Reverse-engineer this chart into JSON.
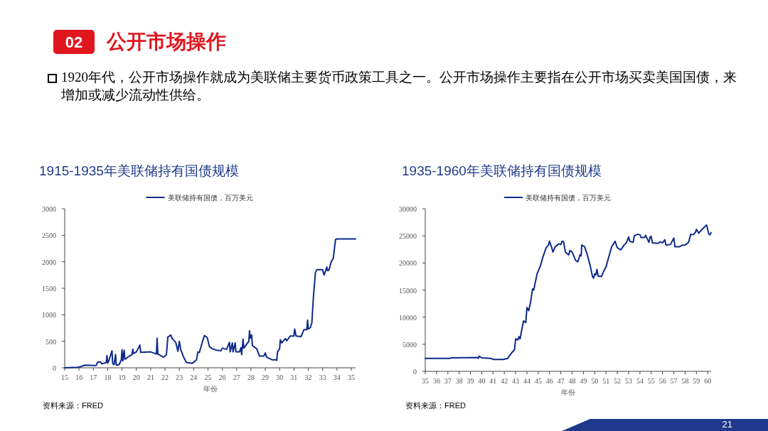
{
  "chart_data": [
    {
      "type": "other",
      "title": "公开市场操作",
      "annotations": [
        "02",
        "1920年代，公开市场操作就成为美联储主要货币政策工具之一。公开市场操作主要指在公开市场买卖美国国债，来增加或减少流动性供给。",
        "21"
      ]
    },
    {
      "type": "line",
      "title": "1915-1935年美联储持有国债规模",
      "xlabel": "年份",
      "legend": "top",
      "grid": false,
      "annotations": [
        "资料来源：FRED"
      ],
      "xlim": [
        15,
        35.3
      ],
      "xticks": [
        15,
        16,
        17,
        18,
        19,
        20,
        21,
        22,
        23,
        24,
        25,
        26,
        27,
        28,
        29,
        30,
        31,
        32,
        33,
        34,
        35
      ],
      "ylim": [
        0,
        3000
      ],
      "yticks": [
        0,
        500,
        1000,
        1500,
        2000,
        2500,
        3000
      ],
      "series": [
        {
          "name": "美联储持有国债，百万美元",
          "color": "#0d2a8a",
          "x": [
            15,
            15.9,
            16.1,
            16.4,
            17.0,
            17.2,
            17.3,
            17.5,
            17.6,
            17.9,
            17.95,
            18.0,
            18.1,
            18.3,
            18.35,
            18.45,
            18.55,
            18.6,
            18.8,
            18.95,
            19.0,
            19.05,
            19.15,
            19.2,
            19.5,
            19.7,
            19.75,
            19.8,
            20.0,
            20.25,
            20.3,
            21.0,
            21.4,
            21.45,
            21.5,
            21.9,
            22.0,
            22.1,
            22.2,
            22.4,
            22.5,
            22.75,
            22.9,
            23.0,
            23.1,
            23.3,
            23.5,
            23.9,
            24.2,
            24.3,
            24.4,
            24.6,
            24.75,
            24.95,
            25.1,
            25.3,
            25.6,
            25.9,
            26.0,
            26.3,
            26.5,
            26.55,
            26.7,
            26.75,
            26.9,
            26.95,
            27.2,
            27.3,
            27.35,
            27.45,
            27.5,
            27.85,
            27.9,
            27.95,
            28.05,
            28.1,
            28.4,
            28.6,
            28.9,
            29.0,
            29.1,
            29.5,
            29.75,
            29.8,
            29.85,
            30.0,
            30.05,
            30.15,
            30.4,
            30.5,
            30.75,
            31.0,
            31.05,
            31.15,
            31.5,
            31.7,
            31.9,
            31.95,
            32.0,
            32.15,
            32.25,
            32.35,
            32.5,
            32.6,
            33.0,
            33.1,
            33.3,
            33.35,
            33.45,
            33.6,
            33.75,
            33.9,
            34.0,
            35.3
          ],
          "values": [
            0,
            10,
            20,
            50,
            45,
            45,
            110,
            110,
            75,
            100,
            230,
            90,
            150,
            320,
            80,
            60,
            250,
            50,
            60,
            150,
            340,
            130,
            330,
            160,
            220,
            250,
            350,
            270,
            300,
            430,
            290,
            300,
            260,
            560,
            260,
            200,
            220,
            250,
            580,
            620,
            550,
            480,
            310,
            500,
            340,
            200,
            100,
            85,
            150,
            300,
            290,
            480,
            610,
            570,
            400,
            360,
            330,
            320,
            370,
            350,
            480,
            300,
            470,
            300,
            470,
            300,
            300,
            380,
            250,
            540,
            370,
            500,
            700,
            560,
            620,
            420,
            360,
            220,
            220,
            280,
            200,
            150,
            150,
            140,
            300,
            360,
            530,
            470,
            550,
            510,
            600,
            600,
            730,
            600,
            590,
            720,
            720,
            900,
            730,
            760,
            850,
            1300,
            1800,
            1850,
            1850,
            1750,
            1900,
            1830,
            1850,
            2000,
            2070,
            2420,
            2430,
            2430
          ]
        }
      ]
    },
    {
      "type": "line",
      "title": "1935-1960年美联储持有国债规模",
      "xlabel": "年份",
      "legend": "top",
      "grid": false,
      "annotations": [
        "资料来源：FRED"
      ],
      "xlim": [
        35,
        60.3
      ],
      "xticks": [
        35,
        36,
        37,
        38,
        39,
        40,
        41,
        42,
        43,
        44,
        45,
        46,
        47,
        48,
        49,
        50,
        51,
        52,
        53,
        54,
        55,
        56,
        57,
        58,
        59,
        60
      ],
      "ylim": [
        0,
        30000
      ],
      "yticks": [
        0,
        5000,
        10000,
        15000,
        20000,
        25000,
        30000
      ],
      "series": [
        {
          "name": "美联储持有国债，百万美元",
          "color": "#0d2a8a",
          "x": [
            35,
            37.2,
            37.3,
            39.6,
            39.7,
            39.75,
            40.0,
            40.8,
            41.0,
            41.9,
            42.3,
            42.6,
            42.9,
            43.0,
            43.2,
            43.3,
            43.4,
            43.5,
            43.7,
            43.9,
            44.0,
            44.15,
            44.3,
            44.5,
            44.6,
            44.9,
            45.2,
            45.4,
            45.7,
            45.9,
            46.0,
            46.2,
            46.3,
            46.5,
            46.8,
            47.0,
            47.1,
            47.25,
            47.4,
            47.7,
            47.8,
            48.0,
            48.2,
            48.3,
            48.5,
            48.7,
            48.8,
            48.85,
            49.1,
            49.3,
            49.6,
            49.8,
            49.9,
            50.0,
            50.1,
            50.2,
            50.3,
            50.6,
            50.8,
            51.0,
            51.2,
            51.5,
            51.8,
            52.0,
            52.3,
            52.6,
            52.8,
            53.0,
            53.1,
            53.4,
            53.5,
            53.8,
            54.0,
            54.1,
            54.4,
            54.5,
            54.8,
            54.9,
            55.0,
            55.1,
            55.6,
            55.8,
            56.0,
            56.2,
            56.3,
            56.7,
            57.0,
            57.1,
            57.5,
            57.8,
            58.0,
            58.3,
            58.5,
            58.7,
            58.9,
            59.0,
            59.2,
            59.5,
            59.7,
            59.9,
            60.1,
            60.2,
            60.3
          ],
          "values": [
            2400,
            2400,
            2500,
            2550,
            2400,
            2800,
            2500,
            2400,
            2200,
            2200,
            2400,
            3300,
            4000,
            6000,
            5800,
            6400,
            6000,
            7200,
            9300,
            9000,
            11800,
            11200,
            12500,
            15200,
            15000,
            18000,
            19500,
            21000,
            22800,
            23300,
            24000,
            22800,
            22000,
            23000,
            23500,
            23400,
            24000,
            23900,
            22000,
            21500,
            22300,
            22000,
            21000,
            20500,
            20200,
            21500,
            21300,
            23300,
            23000,
            21800,
            19500,
            17500,
            17200,
            18000,
            17800,
            18800,
            17600,
            17500,
            18500,
            19300,
            20800,
            23000,
            24000,
            22800,
            22400,
            23300,
            23700,
            24800,
            24000,
            23800,
            25000,
            25300,
            25200,
            24700,
            24700,
            25100,
            23800,
            24800,
            24900,
            23700,
            23600,
            23900,
            23700,
            24300,
            23300,
            23400,
            24600,
            23000,
            23000,
            23300,
            23300,
            23800,
            25300,
            25200,
            25600,
            26200,
            25500,
            26200,
            26600,
            27000,
            25300,
            25200,
            25600
          ]
        }
      ]
    }
  ]
}
